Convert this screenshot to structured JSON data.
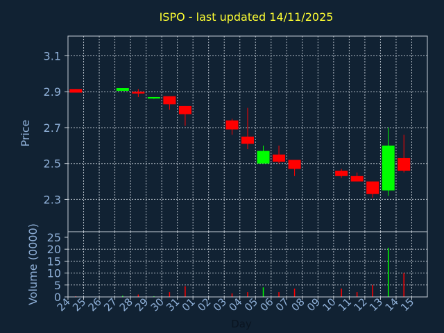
{
  "title": "ISPO - last updated 14/11/2025",
  "colors": {
    "background": "#112233",
    "up": "#00ff00",
    "down": "#ff0000",
    "title": "#ffff33",
    "text": "#8fb0d8"
  },
  "chart_data": [
    {
      "type": "candlestick",
      "title": "ISPO - last updated 14/11/2025",
      "ylabel": "Price",
      "ylim": [
        2.12,
        3.21
      ],
      "yticks": [
        "3.1",
        "2.9",
        "2.7",
        "2.5",
        "2.3"
      ],
      "grid": true,
      "categories": [
        "24",
        "25",
        "26",
        "27",
        "28",
        "29",
        "30",
        "31",
        "01",
        "02",
        "03",
        "04",
        "05",
        "06",
        "07",
        "08",
        "09",
        "10",
        "11",
        "12",
        "13",
        "14",
        "15"
      ],
      "candles": [
        {
          "day": "24",
          "open": 2.915,
          "high": 2.915,
          "low": 2.895,
          "close": 2.895
        },
        {
          "day": "27",
          "open": 2.905,
          "high": 2.92,
          "low": 2.905,
          "close": 2.92
        },
        {
          "day": "28",
          "open": 2.9,
          "high": 2.915,
          "low": 2.87,
          "close": 2.89
        },
        {
          "day": "29",
          "open": 2.865,
          "high": 2.87,
          "low": 2.86,
          "close": 2.87
        },
        {
          "day": "30",
          "open": 2.875,
          "high": 2.875,
          "low": 2.8,
          "close": 2.83
        },
        {
          "day": "31",
          "open": 2.82,
          "high": 2.82,
          "low": 2.71,
          "close": 2.775
        },
        {
          "day": "03",
          "open": 2.74,
          "high": 2.75,
          "low": 2.66,
          "close": 2.69
        },
        {
          "day": "04",
          "open": 2.65,
          "high": 2.81,
          "low": 2.58,
          "close": 2.61
        },
        {
          "day": "05",
          "open": 2.5,
          "high": 2.6,
          "low": 2.5,
          "close": 2.57
        },
        {
          "day": "06",
          "open": 2.55,
          "high": 2.6,
          "low": 2.5,
          "close": 2.51
        },
        {
          "day": "07",
          "open": 2.52,
          "high": 2.52,
          "low": 2.43,
          "close": 2.47
        },
        {
          "day": "10",
          "open": 2.46,
          "high": 2.47,
          "low": 2.42,
          "close": 2.43
        },
        {
          "day": "11",
          "open": 2.43,
          "high": 2.45,
          "low": 2.4,
          "close": 2.4
        },
        {
          "day": "12",
          "open": 2.4,
          "high": 2.4,
          "low": 2.31,
          "close": 2.33
        },
        {
          "day": "13",
          "open": 2.35,
          "high": 2.7,
          "low": 2.32,
          "close": 2.6
        },
        {
          "day": "14",
          "open": 2.53,
          "high": 2.66,
          "low": 2.45,
          "close": 2.46
        }
      ]
    },
    {
      "type": "bar",
      "xlabel": "Day",
      "ylabel": "Volume (0000)",
      "ylim": [
        0,
        25
      ],
      "yticks": [
        "25",
        "20",
        "15",
        "10",
        "5",
        "0"
      ],
      "grid": true,
      "categories": [
        "24",
        "25",
        "26",
        "27",
        "28",
        "29",
        "30",
        "31",
        "01",
        "02",
        "03",
        "04",
        "05",
        "06",
        "07",
        "08",
        "09",
        "10",
        "11",
        "12",
        "13",
        "14",
        "15"
      ],
      "values": [
        0.3,
        0,
        0,
        0.5,
        1,
        0.3,
        2,
        4.5,
        0,
        0,
        1.5,
        2,
        4,
        2,
        3.5,
        0,
        0,
        3.5,
        2,
        5,
        20.5,
        10,
        0
      ],
      "colors": [
        "down",
        "down",
        "down",
        "up",
        "down",
        "up",
        "down",
        "down",
        "down",
        "down",
        "down",
        "down",
        "up",
        "down",
        "down",
        "down",
        "down",
        "down",
        "down",
        "down",
        "up",
        "down",
        "down"
      ]
    }
  ]
}
